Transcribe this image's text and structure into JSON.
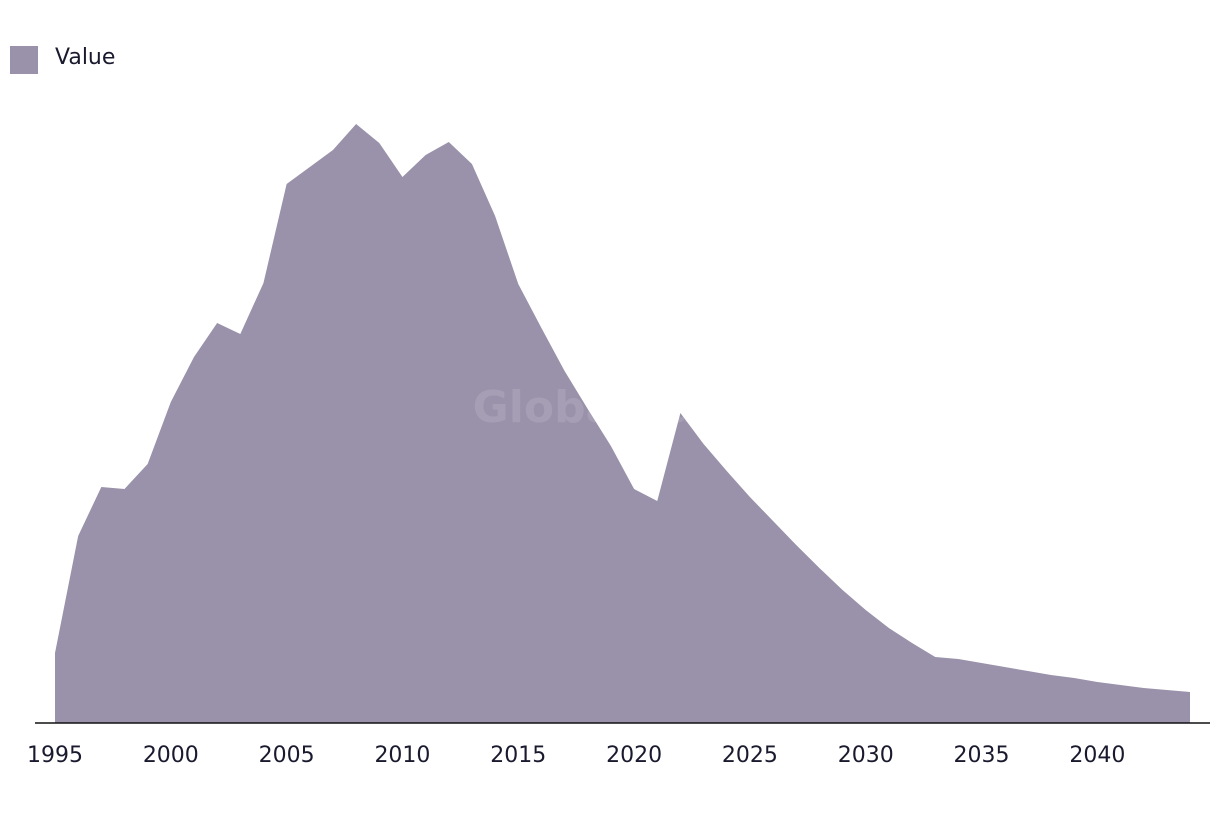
{
  "chart_data": {
    "type": "area",
    "watermark": "GlobalData",
    "x": [
      1995,
      1996,
      1997,
      1998,
      1999,
      2000,
      2001,
      2002,
      2003,
      2004,
      2005,
      2006,
      2007,
      2008,
      2009,
      2010,
      2011,
      2012,
      2013,
      2014,
      2015,
      2016,
      2017,
      2018,
      2019,
      2020,
      2021,
      2022,
      2023,
      2024,
      2025,
      2026,
      2027,
      2028,
      2029,
      2030,
      2031,
      2032,
      2033,
      2034,
      2035,
      2036,
      2037,
      2038,
      2039,
      2040,
      2041,
      2042,
      2043,
      2044
    ],
    "series": [
      {
        "name": "Value",
        "color": "#9a91aa",
        "values": [
          70,
          187,
          236,
          234,
          259,
          321,
          366,
          400,
          389,
          440,
          539,
          556,
          573,
          599,
          580,
          546,
          568,
          581,
          559,
          507,
          439,
          395,
          352,
          314,
          277,
          234,
          222,
          310,
          279,
          252,
          226,
          202,
          178,
          155,
          133,
          113,
          95,
          80,
          66,
          64,
          60,
          56,
          52,
          48,
          45,
          41,
          38,
          35,
          33,
          31
        ]
      }
    ],
    "xlim": [
      1995,
      2044
    ],
    "xticks": [
      1995,
      2000,
      2005,
      2010,
      2015,
      2020,
      2025,
      2030,
      2035,
      2040
    ],
    "ylim": [
      0,
      620
    ],
    "legend": "top-left"
  }
}
